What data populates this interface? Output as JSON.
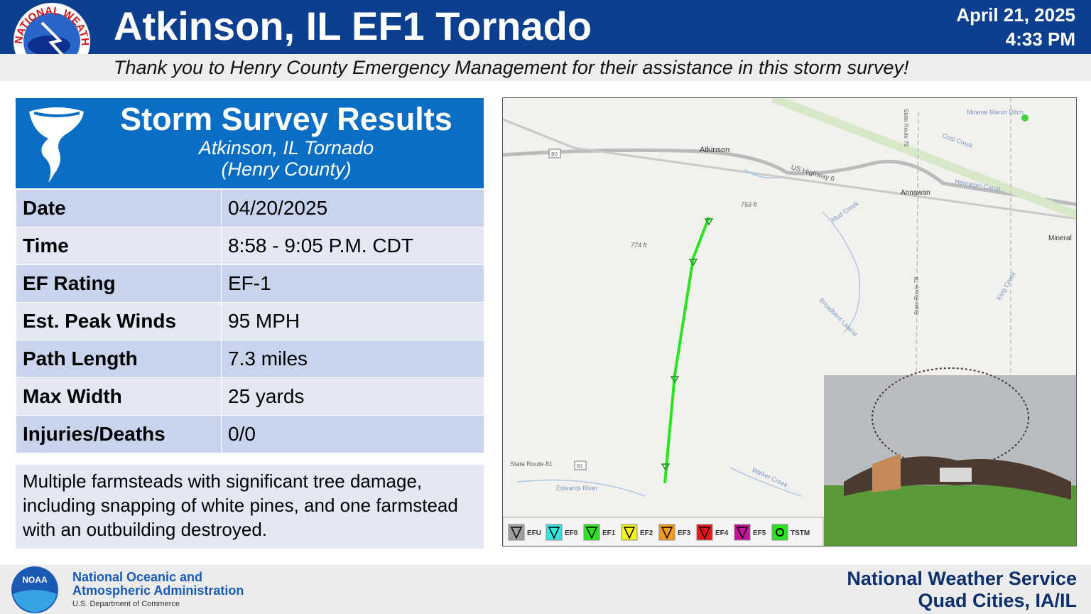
{
  "header": {
    "logo_text": "NATIONAL WEATHER SERVICE",
    "title": "Atkinson, IL EF1 Tornado",
    "date": "April 21, 2025",
    "time": "4:33 PM",
    "subtitle": "Thank you to Henry County Emergency Management for their assistance in this storm survey!"
  },
  "panel": {
    "title": "Storm Survey Results",
    "subtitle_lines": [
      "Atkinson, IL Tornado",
      "(Henry County)"
    ],
    "table": {
      "rows": [
        [
          "Date",
          "04/20/2025"
        ],
        [
          "Time",
          "8:58 - 9:05 P.M. CDT"
        ],
        [
          "EF Rating",
          "EF-1"
        ],
        [
          "Est. Peak Winds",
          "95 MPH"
        ],
        [
          "Path Length",
          "7.3 miles"
        ],
        [
          "Max Width",
          "25 yards"
        ],
        [
          "Injuries/Deaths",
          "0/0"
        ]
      ]
    },
    "description": "Multiple farmsteads with significant tree damage, including snapping of white pines, and one farmstead with an outbuilding destroyed."
  },
  "map": {
    "labels": [
      "Atkinson",
      "US Highway 6",
      "Annawan",
      "Mineral",
      "Mineral Marsh Ditch",
      "Coal Creek",
      "Hennepin Canal",
      "Mud Creek",
      "759 ft",
      "774 ft",
      "State Route 78",
      "State Route 78",
      "Broadbent Lateral",
      "King Creek",
      "State Route 81",
      "81",
      "80",
      "Edwards River",
      "Walker Creek"
    ],
    "legend": [
      {
        "label": "EFU",
        "color": "#9e9e9e"
      },
      {
        "label": "EF0",
        "color": "#2ee8e0"
      },
      {
        "label": "EF1",
        "color": "#27e51f"
      },
      {
        "label": "EF2",
        "color": "#f4f41a"
      },
      {
        "label": "EF3",
        "color": "#f29a1a"
      },
      {
        "label": "EF4",
        "color": "#e8141a"
      },
      {
        "label": "EF5",
        "color": "#c4129a"
      },
      {
        "label": "TSTM",
        "color": "#27e51f"
      }
    ]
  },
  "footer": {
    "noaa_logo": "NOAA",
    "org_lines": [
      "National Oceanic and",
      "Atmospheric Administration"
    ],
    "department": "U.S. Department of Commerce",
    "office_lines": [
      "National Weather Service",
      "Quad Cities, IA/IL"
    ]
  }
}
